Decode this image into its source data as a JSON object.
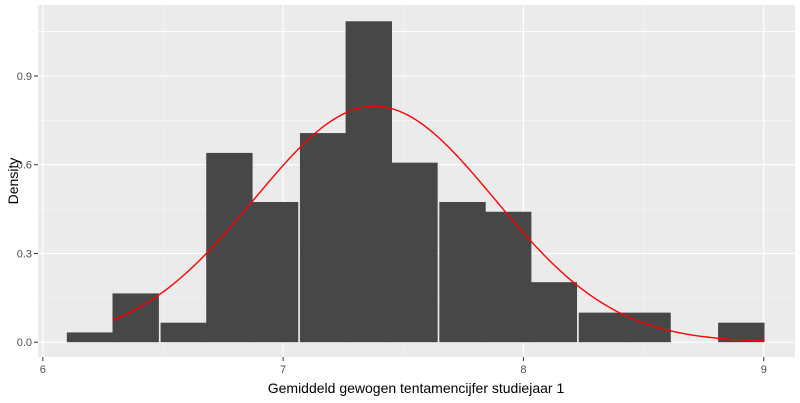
{
  "chart_data": {
    "type": "bar",
    "subtype": "histogram-with-density-curve",
    "xlabel": "Gemiddeld gewogen tentamencijfer studiejaar 1",
    "ylabel": "Density",
    "xlim": [
      5.98,
      9.13
    ],
    "ylim": [
      -0.05,
      1.14
    ],
    "x_ticks": [
      {
        "value": 6,
        "label": "6"
      },
      {
        "value": 7,
        "label": "7"
      },
      {
        "value": 8,
        "label": "8"
      },
      {
        "value": 9,
        "label": "9"
      }
    ],
    "y_ticks": [
      {
        "value": 0.0,
        "label": "0.0"
      },
      {
        "value": 0.3,
        "label": "0.3"
      },
      {
        "value": 0.6,
        "label": "0.6"
      },
      {
        "value": 0.9,
        "label": "0.9"
      }
    ],
    "grid": true,
    "bin_width": 0.193,
    "bins": [
      {
        "start": 6.1,
        "density": 0.033
      },
      {
        "start": 6.29,
        "density": 0.165
      },
      {
        "start": 6.49,
        "density": 0.066
      },
      {
        "start": 6.68,
        "density": 0.64
      },
      {
        "start": 6.87,
        "density": 0.474
      },
      {
        "start": 7.07,
        "density": 0.707
      },
      {
        "start": 7.26,
        "density": 1.085
      },
      {
        "start": 7.45,
        "density": 0.607
      },
      {
        "start": 7.65,
        "density": 0.474
      },
      {
        "start": 7.84,
        "density": 0.441
      },
      {
        "start": 8.03,
        "density": 0.203
      },
      {
        "start": 8.23,
        "density": 0.1
      },
      {
        "start": 8.42,
        "density": 0.1
      },
      {
        "start": 8.81,
        "density": 0.066
      }
    ],
    "density_curve": {
      "distribution": "normal",
      "mean": 7.38,
      "sd": 0.5,
      "x_range": [
        6.29,
        9.0
      ],
      "color": "#ff0000"
    },
    "colors": {
      "bar_fill": "#474747",
      "panel_background": "#ebebeb",
      "grid_major": "#ffffff",
      "grid_minor": "#f5f5f5"
    }
  }
}
